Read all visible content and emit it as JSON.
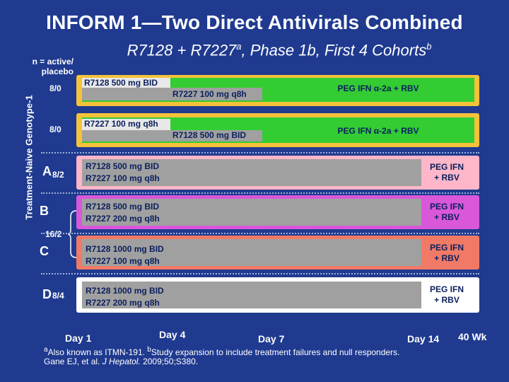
{
  "title": "INFORM 1—Two Direct Antivirals Combined",
  "subtitle": {
    "text": "R7128 + R7227",
    "sup_a": "a",
    "rest": ", Phase 1b, First 4 Cohorts",
    "sup_b": "b"
  },
  "n_label": {
    "line1": "n = active/",
    "line2": "placebo"
  },
  "y_label": "Treatment-Naive Genotype-1",
  "rows": [
    {
      "count": "8/0",
      "line1": "R7128 500 mg BID",
      "line2": "R7227 100 mg q8h",
      "end": "PEG IFN α-2a + RBV",
      "colors": {
        "frame": "#f5c23a",
        "fill": "#33cc33"
      }
    },
    {
      "count": "8/0",
      "line1": "R7227 100 mg q8h",
      "line2": "R7128 500 mg BID",
      "end": "PEG IFN α-2a + RBV",
      "colors": {
        "frame": "#f5c23a",
        "fill": "#33cc33"
      }
    },
    {
      "cohort": "A",
      "count": "8/2",
      "line1": "R7128 500 mg BID",
      "line2": "R7227 100 mg q8h",
      "end1": "PEG IFN",
      "end2": "+ RBV",
      "colors": {
        "frame": "#ffb6c8"
      }
    },
    {
      "cohort": "B",
      "line1": "R7128 500 mg BID",
      "line2": "R7227 200 mg q8h",
      "end1": "PEG IFN",
      "end2": "+ RBV",
      "colors": {
        "frame": "#d957d9"
      }
    },
    {
      "cohort": "C",
      "line1": "R7128 1000 mg BID",
      "line2": "R7227 100 mg q8h",
      "end1": "PEG IFN",
      "end2": "+ RBV",
      "colors": {
        "frame": "#f07a66"
      }
    },
    {
      "cohort": "D",
      "count": "8/4",
      "line1": "R7128 1000 mg BID",
      "line2": "R7227 200 mg q8h",
      "end1": "PEG IFN",
      "end2": "+ RBV",
      "colors": {
        "frame": "#ffffff"
      }
    }
  ],
  "bc_count": "16/2",
  "days": {
    "d1": "Day 1",
    "d4": "Day 4",
    "d7": "Day 7",
    "d14": "Day 14",
    "wk40": "40 Wk"
  },
  "footnote": {
    "a_sup": "a",
    "a_text": "Also known as ITMN-191. ",
    "b_sup": "b",
    "b_text": "Study expansion to include treatment failures and null responders.",
    "ref_pre": "Gane EJ, et al. ",
    "ref_journal": "J Hepatol.",
    "ref_post": " 2009;50;S380."
  },
  "colors": {
    "background": "#1f3a8f",
    "bar_gray": "#a0a0a0",
    "bar_light": "#e8e8e8"
  }
}
